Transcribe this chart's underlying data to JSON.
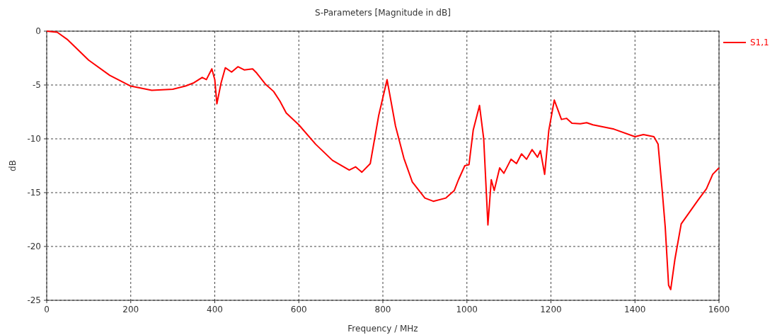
{
  "chart_data": {
    "type": "line",
    "title": "S-Parameters [Magnitude in dB]",
    "xlabel": "Frequency / MHz",
    "ylabel": "dB",
    "xlim": [
      0,
      1600
    ],
    "ylim": [
      -25,
      0
    ],
    "xticks": [
      0,
      200,
      400,
      600,
      800,
      1000,
      1200,
      1400,
      1600
    ],
    "yticks": [
      -25,
      -20,
      -15,
      -10,
      -5,
      0
    ],
    "grid": true,
    "legend": "top right",
    "line_style": "solid",
    "marker": "none",
    "series": [
      {
        "name": "S1,1",
        "color": "#ff0000",
        "x": [
          0,
          25,
          50,
          100,
          150,
          200,
          250,
          300,
          330,
          350,
          370,
          380,
          393,
          400,
          405,
          415,
          425,
          440,
          455,
          470,
          490,
          500,
          520,
          540,
          555,
          570,
          600,
          640,
          680,
          720,
          735,
          750,
          770,
          790,
          810,
          830,
          850,
          870,
          900,
          920,
          950,
          970,
          980,
          995,
          1005,
          1015,
          1030,
          1040,
          1050,
          1058,
          1065,
          1078,
          1088,
          1105,
          1118,
          1130,
          1142,
          1155,
          1168,
          1175,
          1185,
          1195,
          1208,
          1225,
          1237,
          1250,
          1270,
          1285,
          1300,
          1350,
          1400,
          1420,
          1445,
          1455,
          1465,
          1472,
          1480,
          1485,
          1495,
          1510,
          1530,
          1550,
          1570,
          1585,
          1600
        ],
        "values": [
          0,
          -0.1,
          -0.8,
          -2.7,
          -4.1,
          -5.1,
          -5.5,
          -5.4,
          -5.1,
          -4.8,
          -4.3,
          -4.5,
          -3.5,
          -4.5,
          -6.75,
          -4.8,
          -3.4,
          -3.8,
          -3.3,
          -3.6,
          -3.5,
          -3.9,
          -4.9,
          -5.6,
          -6.5,
          -7.6,
          -8.7,
          -10.5,
          -12.0,
          -12.9,
          -12.6,
          -13.1,
          -12.3,
          -7.85,
          -4.5,
          -8.8,
          -11.8,
          -14.0,
          -15.5,
          -15.8,
          -15.5,
          -14.8,
          -13.8,
          -12.5,
          -12.4,
          -9.2,
          -6.9,
          -10.0,
          -18.0,
          -13.8,
          -14.8,
          -12.7,
          -13.2,
          -11.9,
          -12.3,
          -11.4,
          -11.9,
          -11.0,
          -11.7,
          -11.1,
          -13.3,
          -9.2,
          -6.4,
          -8.2,
          -8.1,
          -8.55,
          -8.6,
          -8.5,
          -8.7,
          -9.1,
          -9.8,
          -9.6,
          -9.8,
          -10.5,
          -14.9,
          -18.2,
          -23.6,
          -24.0,
          -21.2,
          -17.9,
          -16.8,
          -15.7,
          -14.65,
          -13.3,
          -12.7
        ]
      }
    ]
  }
}
